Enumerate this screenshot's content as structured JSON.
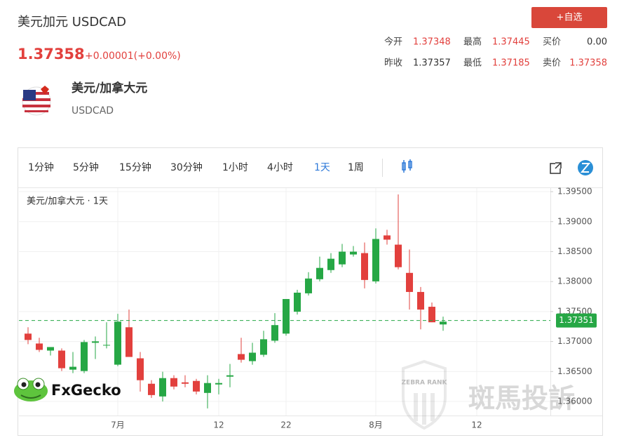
{
  "header": {
    "title": "美元加元 USDCAD",
    "button": "+自选",
    "price": "1.37358",
    "change": "+0.00001(+0.00%)"
  },
  "stats": [
    [
      "今开",
      "1.37348",
      "最高",
      "1.37445",
      "买价",
      "0.00"
    ],
    [
      "昨收",
      "1.37357",
      "最低",
      "1.37185",
      "卖价",
      "1.37358"
    ]
  ],
  "instrument": {
    "name": "美元/加拿大元",
    "code": "USDCAD"
  },
  "tabs": [
    "1分钟",
    "5分钟",
    "15分钟",
    "30分钟",
    "1小时",
    "4小时",
    "1天",
    "1周"
  ],
  "active_tab": 6,
  "watermarks": {
    "brand": "FxGecko",
    "zebra": "斑馬投訴",
    "zebra_badge": "ZEBRA RANK"
  },
  "chart_data": {
    "type": "candlestick",
    "title": "美元/加拿大元 · 1天",
    "categories": [
      null,
      null,
      null,
      null,
      null,
      null,
      null,
      null,
      "7月",
      null,
      null,
      null,
      null,
      null,
      null,
      null,
      null,
      "12",
      null,
      null,
      null,
      null,
      null,
      "22",
      null,
      null,
      null,
      null,
      null,
      null,
      null,
      "8月",
      null,
      null,
      null,
      null,
      null,
      null,
      null,
      null,
      "12",
      null,
      null,
      null,
      null,
      null,
      null
    ],
    "open": [
      1.37132,
      1.36967,
      1.36849,
      1.36849,
      1.36531,
      1.36508,
      1.36979,
      1.36944,
      1.36614,
      1.37238,
      1.3672,
      1.36296,
      1.36084,
      1.3639,
      1.36319,
      1.36343,
      1.36143,
      1.36284,
      1.36414,
      1.36791,
      1.36673,
      1.36779,
      1.37014,
      1.37132,
      1.37497,
      1.37804,
      1.38039,
      1.38192,
      1.38287,
      1.38452,
      1.38475,
      1.38004,
      1.3877,
      1.38616,
      1.38145,
      1.37827,
      1.3758,
      1.37285,
      null,
      null,
      null,
      null,
      null,
      null,
      null,
      null,
      null
    ],
    "high": [
      1.37238,
      1.37062,
      1.36908,
      1.36885,
      1.36826,
      1.37026,
      1.37085,
      1.37321,
      1.37462,
      1.37533,
      1.36826,
      1.36355,
      1.36496,
      1.36437,
      1.36437,
      1.36378,
      1.36437,
      1.36378,
      1.36626,
      1.37062,
      1.36979,
      1.37179,
      1.37474,
      1.37709,
      1.37863,
      1.38157,
      1.38416,
      1.38475,
      1.38628,
      1.38593,
      1.38652,
      1.38887,
      1.38864,
      1.39453,
      1.38534,
      1.3791,
      1.37651,
      1.37415,
      null,
      null,
      null,
      null,
      null,
      null,
      null,
      null,
      null
    ],
    "low": [
      1.36955,
      1.36826,
      1.36767,
      1.36508,
      1.36473,
      1.36473,
      1.36708,
      1.36885,
      1.3659,
      1.36743,
      1.36166,
      1.3606,
      1.36,
      1.36202,
      1.36237,
      1.36119,
      1.35884,
      1.36119,
      1.36237,
      1.36649,
      1.36614,
      1.36743,
      1.36979,
      1.37097,
      1.3745,
      1.37768,
      1.38004,
      1.38145,
      1.3824,
      1.38416,
      1.37886,
      1.37969,
      1.38616,
      1.38204,
      1.37533,
      1.37203,
      1.37321,
      1.37179,
      null,
      null,
      null,
      null,
      null,
      null,
      null,
      null,
      null
    ],
    "close": [
      1.37026,
      1.36861,
      1.36908,
      1.36555,
      1.36579,
      1.36991,
      1.37003,
      1.36944,
      1.37332,
      1.36743,
      1.36355,
      1.36107,
      1.3639,
      1.36249,
      1.36296,
      1.36166,
      1.36308,
      1.36308,
      1.36437,
      1.36696,
      1.36814,
      1.37038,
      1.37274,
      1.37709,
      1.37815,
      1.38051,
      1.38228,
      1.38381,
      1.38499,
      1.38499,
      1.38027,
      1.38711,
      1.38699,
      1.3824,
      1.37827,
      1.37533,
      1.37321,
      1.37332,
      null,
      null,
      null,
      null,
      null,
      null,
      null,
      null,
      null
    ],
    "up_color": "#26a745",
    "down_color": "#e2403d",
    "ylim": [
      1.35766,
      1.39559
    ],
    "yticks": [
      {
        "value": 1.36,
        "label": "1.36000"
      },
      {
        "value": 1.365,
        "label": "1.36500"
      },
      {
        "value": 1.37,
        "label": "1.37000"
      },
      {
        "value": 1.375,
        "label": "1.37500"
      },
      {
        "value": 1.38,
        "label": "1.38000"
      },
      {
        "value": 1.385,
        "label": "1.38500"
      },
      {
        "value": 1.39,
        "label": "1.39000"
      },
      {
        "value": 1.395,
        "label": "1.39500"
      }
    ],
    "last_price": 1.37351,
    "last_price_color": "#26a745",
    "grid": true
  }
}
